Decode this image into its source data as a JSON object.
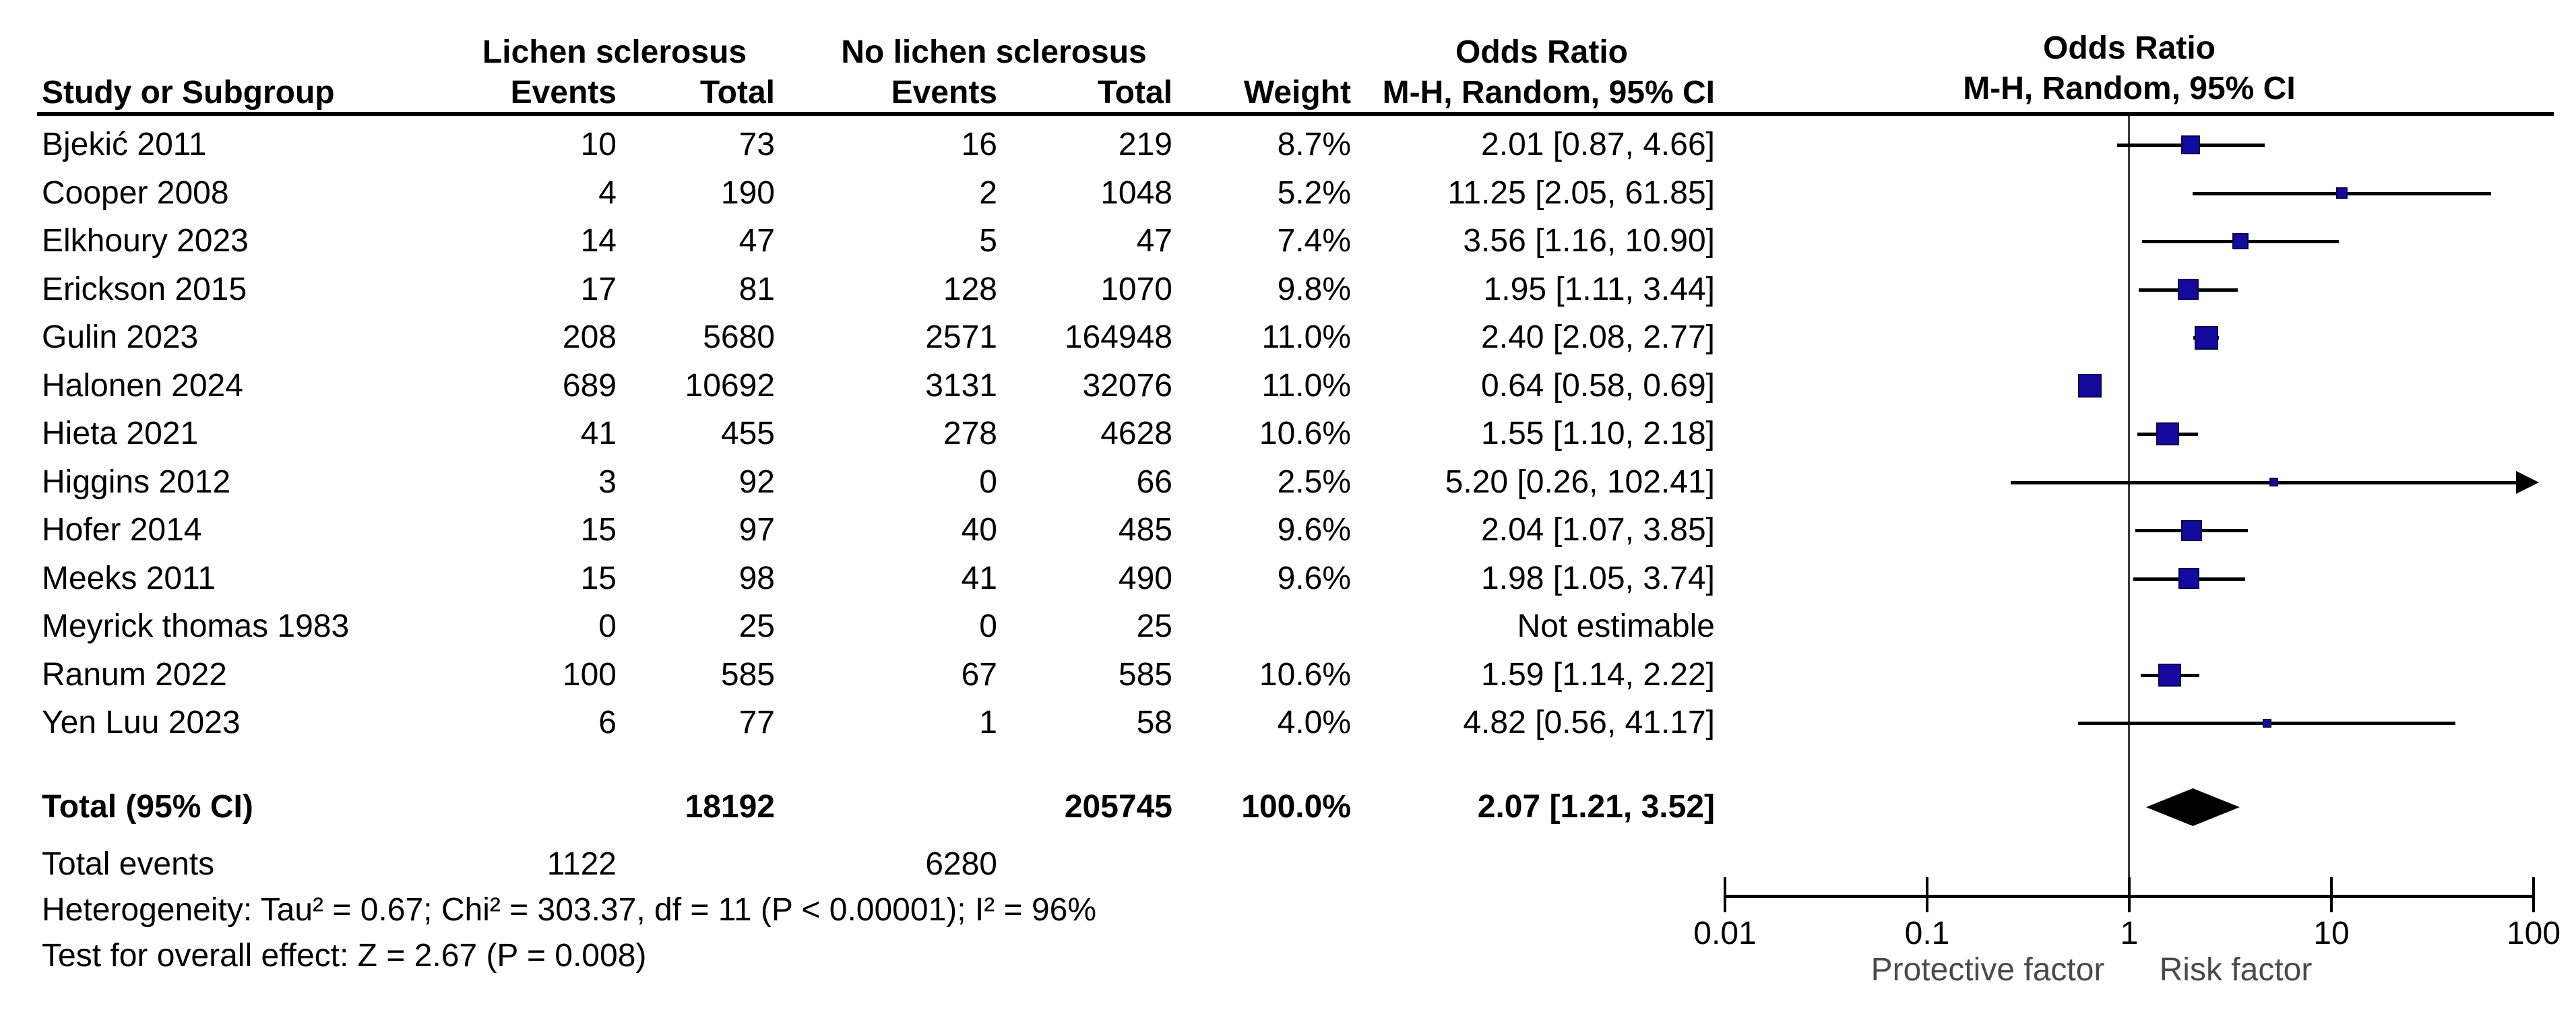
{
  "headers": {
    "group_exposed": "Lichen sclerosus",
    "group_control": "No lichen sclerosus",
    "group_or_text": "Odds Ratio",
    "group_or_plot": "Odds Ratio",
    "study": "Study or Subgroup",
    "events_exposed": "Events",
    "total_exposed": "Total",
    "events_control": "Events",
    "total_control": "Total",
    "weight": "Weight",
    "mh_text": "M-H, Random, 95% CI",
    "mh_plot": "M-H, Random, 95% CI"
  },
  "chart_data": {
    "type": "forest",
    "effect_measure": "Odds Ratio, M-H, Random, 95% CI",
    "x_scale": "log10",
    "xlim": [
      0.01,
      100
    ],
    "rows": [
      {
        "study": "Bjekić 2011",
        "e1": "10",
        "t1": "73",
        "e2": "16",
        "t2": "219",
        "weight": "8.7%",
        "weight_pct": 8.7,
        "ci_text": "2.01 [0.87, 4.66]",
        "or": 2.01,
        "lo": 0.87,
        "hi": 4.66
      },
      {
        "study": "Cooper 2008",
        "e1": "4",
        "t1": "190",
        "e2": "2",
        "t2": "1048",
        "weight": "5.2%",
        "weight_pct": 5.2,
        "ci_text": "11.25 [2.05, 61.85]",
        "or": 11.25,
        "lo": 2.05,
        "hi": 61.85
      },
      {
        "study": "Elkhoury 2023",
        "e1": "14",
        "t1": "47",
        "e2": "5",
        "t2": "47",
        "weight": "7.4%",
        "weight_pct": 7.4,
        "ci_text": "3.56 [1.16, 10.90]",
        "or": 3.56,
        "lo": 1.16,
        "hi": 10.9
      },
      {
        "study": "Erickson 2015",
        "e1": "17",
        "t1": "81",
        "e2": "128",
        "t2": "1070",
        "weight": "9.8%",
        "weight_pct": 9.8,
        "ci_text": "1.95 [1.11, 3.44]",
        "or": 1.95,
        "lo": 1.11,
        "hi": 3.44
      },
      {
        "study": "Gulin 2023",
        "e1": "208",
        "t1": "5680",
        "e2": "2571",
        "t2": "164948",
        "weight": "11.0%",
        "weight_pct": 11.0,
        "ci_text": "2.40 [2.08, 2.77]",
        "or": 2.4,
        "lo": 2.08,
        "hi": 2.77
      },
      {
        "study": "Halonen 2024",
        "e1": "689",
        "t1": "10692",
        "e2": "3131",
        "t2": "32076",
        "weight": "11.0%",
        "weight_pct": 11.0,
        "ci_text": "0.64 [0.58, 0.69]",
        "or": 0.64,
        "lo": 0.58,
        "hi": 0.69
      },
      {
        "study": "Hieta 2021",
        "e1": "41",
        "t1": "455",
        "e2": "278",
        "t2": "4628",
        "weight": "10.6%",
        "weight_pct": 10.6,
        "ci_text": "1.55 [1.10, 2.18]",
        "or": 1.55,
        "lo": 1.1,
        "hi": 2.18
      },
      {
        "study": "Higgins 2012",
        "e1": "3",
        "t1": "92",
        "e2": "0",
        "t2": "66",
        "weight": "2.5%",
        "weight_pct": 2.5,
        "ci_text": "5.20 [0.26, 102.41]",
        "or": 5.2,
        "lo": 0.26,
        "hi": 102.41
      },
      {
        "study": "Hofer 2014",
        "e1": "15",
        "t1": "97",
        "e2": "40",
        "t2": "485",
        "weight": "9.6%",
        "weight_pct": 9.6,
        "ci_text": "2.04 [1.07, 3.85]",
        "or": 2.04,
        "lo": 1.07,
        "hi": 3.85
      },
      {
        "study": "Meeks 2011",
        "e1": "15",
        "t1": "98",
        "e2": "41",
        "t2": "490",
        "weight": "9.6%",
        "weight_pct": 9.6,
        "ci_text": "1.98 [1.05, 3.74]",
        "or": 1.98,
        "lo": 1.05,
        "hi": 3.74
      },
      {
        "study": "Meyrick thomas 1983",
        "e1": "0",
        "t1": "25",
        "e2": "0",
        "t2": "25",
        "weight": "",
        "weight_pct": null,
        "ci_text": "Not estimable",
        "or": null,
        "lo": null,
        "hi": null
      },
      {
        "study": "Ranum 2022",
        "e1": "100",
        "t1": "585",
        "e2": "67",
        "t2": "585",
        "weight": "10.6%",
        "weight_pct": 10.6,
        "ci_text": "1.59 [1.14, 2.22]",
        "or": 1.59,
        "lo": 1.14,
        "hi": 2.22
      },
      {
        "study": "Yen Luu 2023",
        "e1": "6",
        "t1": "77",
        "e2": "1",
        "t2": "58",
        "weight": "4.0%",
        "weight_pct": 4.0,
        "ci_text": "4.82 [0.56, 41.17]",
        "or": 4.82,
        "lo": 0.56,
        "hi": 41.17
      }
    ],
    "total": {
      "label": "Total (95% CI)",
      "t1": "18192",
      "t2": "205745",
      "weight": "100.0%",
      "ci_text": "2.07 [1.21, 3.52]",
      "or": 2.07,
      "lo": 1.21,
      "hi": 3.52
    },
    "total_events": {
      "label": "Total events",
      "e1": "1122",
      "e2": "6280"
    },
    "footnotes": {
      "heterogeneity": "Heterogeneity: Tau² = 0.67; Chi² = 303.37, df = 11 (P < 0.00001); I² = 96%",
      "overall_effect": "Test for overall effect: Z = 2.67 (P = 0.008)"
    },
    "axis": {
      "ticks": [
        "0.01",
        "0.1",
        "1",
        "10",
        "100"
      ],
      "tick_values": [
        0.01,
        0.1,
        1,
        10,
        100
      ],
      "label_protective": "Protective factor",
      "label_risk": "Risk factor"
    },
    "colors": {
      "marker": "#150a9e",
      "marker_border": "#0a0554",
      "ci_line": "#000000",
      "diamond": "#000000",
      "null_line": "#3a3a3a"
    }
  }
}
